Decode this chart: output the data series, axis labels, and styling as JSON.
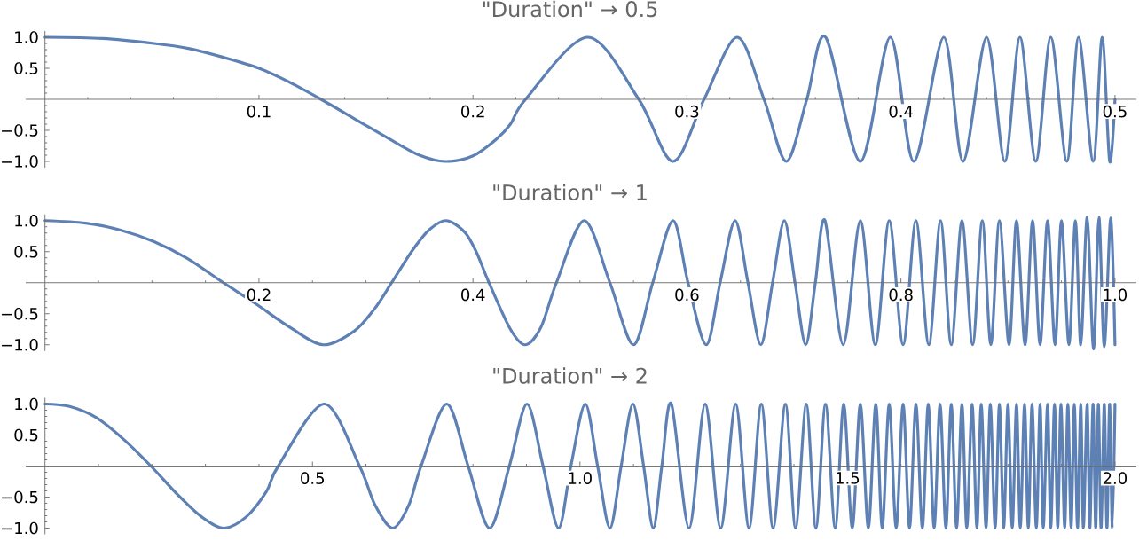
{
  "chart_data": [
    {
      "type": "line",
      "title": "\"Duration\" → 0.5",
      "color": "#5e81b5",
      "x": [
        0,
        0.027,
        0.051,
        0.067,
        0.083,
        0.1,
        0.114,
        0.129,
        0.146,
        0.162,
        0.175,
        0.187,
        0.2,
        0.211,
        0.2175,
        0.2246,
        0.2536,
        0.2775,
        0.2935,
        0.308,
        0.3235,
        0.336,
        0.3464,
        0.356,
        0.3648,
        0.381,
        0.395,
        0.406,
        0.42,
        0.429,
        0.44,
        0.4485,
        0.4556,
        0.463,
        0.47,
        0.4775,
        0.483,
        0.4898,
        0.494,
        0.4975,
        0.5
      ],
      "values": [
        1,
        0.98,
        0.9,
        0.82,
        0.68,
        0.5,
        0.28,
        0,
        -0.34,
        -0.66,
        -0.9,
        -1,
        -0.91,
        -0.64,
        -0.4,
        0,
        1,
        0,
        -1,
        0,
        1,
        0,
        -1,
        0,
        1,
        -1,
        1,
        -1,
        1,
        -1,
        1,
        -1,
        1,
        -1,
        1,
        -1,
        1,
        -1,
        1,
        -1,
        0
      ],
      "xlim": [
        -0.009,
        0.51
      ],
      "ylim": [
        -1.1,
        1.1
      ],
      "xticks": [
        {
          "value": 0.02,
          "label": null
        },
        {
          "value": 0.04,
          "label": null
        },
        {
          "value": 0.06,
          "label": null
        },
        {
          "value": 0.08,
          "label": null
        },
        0.1,
        {
          "value": 0.12,
          "label": null
        },
        {
          "value": 0.14,
          "label": null
        },
        {
          "value": 0.16,
          "label": null
        },
        {
          "value": 0.18,
          "label": null
        },
        0.2,
        {
          "value": 0.22,
          "label": null
        },
        {
          "value": 0.24,
          "label": null
        },
        {
          "value": 0.26,
          "label": null
        },
        {
          "value": 0.28,
          "label": null
        },
        0.3,
        {
          "value": 0.32,
          "label": null
        },
        {
          "value": 0.34,
          "label": null
        },
        {
          "value": 0.36,
          "label": null
        },
        {
          "value": 0.38,
          "label": null
        },
        0.4,
        {
          "value": 0.42,
          "label": null
        },
        {
          "value": 0.44,
          "label": null
        },
        {
          "value": 0.46,
          "label": null
        },
        {
          "value": 0.48,
          "label": null
        },
        0.5
      ],
      "yticks": [
        {
          "value": -1,
          "label": "−1.0"
        },
        {
          "value": -0.9,
          "label": null
        },
        {
          "value": -0.8,
          "label": null
        },
        {
          "value": -0.7,
          "label": null
        },
        {
          "value": -0.6,
          "label": null
        },
        {
          "value": -0.5,
          "label": "−0.5"
        },
        {
          "value": -0.4,
          "label": null
        },
        {
          "value": -0.3,
          "label": null
        },
        {
          "value": -0.2,
          "label": null
        },
        {
          "value": -0.1,
          "label": null
        },
        {
          "value": 0.1,
          "label": null
        },
        {
          "value": 0.2,
          "label": null
        },
        {
          "value": 0.3,
          "label": null
        },
        {
          "value": 0.4,
          "label": null
        },
        {
          "value": 0.5,
          "label": "0.5"
        },
        {
          "value": 0.6,
          "label": null
        },
        {
          "value": 0.7,
          "label": null
        },
        {
          "value": 0.8,
          "label": null
        },
        {
          "value": 0.9,
          "label": null
        },
        {
          "value": 1,
          "label": "1.0"
        }
      ]
    },
    {
      "type": "line",
      "title": "\"Duration\" → 1",
      "color": "#5e81b5",
      "x": [
        0,
        0.038,
        0.07,
        0.102,
        0.133,
        0.1667,
        0.197,
        0.229,
        0.26,
        0.289,
        0.308,
        0.324,
        0.343,
        0.359,
        0.375,
        0.392,
        0.403,
        0.415,
        0.435,
        0.449,
        0.4635,
        0.478,
        0.504,
        0.528,
        0.55,
        0.568,
        0.587,
        0.601,
        0.618,
        0.631,
        0.645,
        0.657,
        0.669,
        0.68,
        0.691,
        0.701,
        0.711,
        0.72,
        0.729,
        0.746,
        0.762,
        0.776,
        0.789,
        0.802,
        0.814,
        0.826,
        0.837,
        0.847,
        0.857,
        0.867,
        0.876,
        0.884,
        0.892,
        0.901,
        0.908,
        0.916,
        0.923,
        0.93,
        0.937,
        0.944,
        0.95,
        0.957,
        0.963,
        0.968,
        0.974,
        0.98,
        0.985,
        0.99,
        0.996,
        1.0
      ],
      "values": [
        1,
        0.96,
        0.85,
        0.66,
        0.39,
        0,
        -0.34,
        -0.72,
        -1,
        -0.78,
        -0.42,
        0,
        0.51,
        0.85,
        1,
        0.82,
        0.5,
        0,
        -0.75,
        -1,
        -0.72,
        0,
        1,
        0,
        -1,
        0,
        1,
        0,
        -1,
        0,
        1,
        0,
        -1,
        0,
        1,
        0,
        -1,
        0,
        1,
        -1,
        1,
        -1,
        1,
        -1,
        1,
        -1,
        1,
        -1,
        1,
        -1,
        1,
        -1,
        1,
        -1,
        1,
        -1,
        1,
        -1,
        1,
        -1,
        1,
        -1,
        1,
        -1,
        1.05,
        -1.07,
        1.05,
        -1.03,
        1.04,
        -1
      ],
      "xlim": [
        -0.018,
        1.02
      ],
      "ylim": [
        -1.1,
        1.1
      ],
      "xticks": [
        {
          "value": 0.05,
          "label": null
        },
        {
          "value": 0.1,
          "label": null
        },
        {
          "value": 0.15,
          "label": null
        },
        0.2,
        {
          "value": 0.25,
          "label": null
        },
        {
          "value": 0.3,
          "label": null
        },
        {
          "value": 0.35,
          "label": null
        },
        0.4,
        {
          "value": 0.45,
          "label": null
        },
        {
          "value": 0.5,
          "label": null
        },
        {
          "value": 0.55,
          "label": null
        },
        0.6,
        {
          "value": 0.65,
          "label": null
        },
        {
          "value": 0.7,
          "label": null
        },
        {
          "value": 0.75,
          "label": null
        },
        0.8,
        {
          "value": 0.85,
          "label": null
        },
        {
          "value": 0.9,
          "label": null
        },
        {
          "value": 0.95,
          "label": null
        },
        {
          "value": 1,
          "label": "1.0"
        }
      ],
      "yticks": [
        {
          "value": -1,
          "label": "−1.0"
        },
        {
          "value": -0.9,
          "label": null
        },
        {
          "value": -0.8,
          "label": null
        },
        {
          "value": -0.7,
          "label": null
        },
        {
          "value": -0.6,
          "label": null
        },
        {
          "value": -0.5,
          "label": "−0.5"
        },
        {
          "value": -0.4,
          "label": null
        },
        {
          "value": -0.3,
          "label": null
        },
        {
          "value": -0.2,
          "label": null
        },
        {
          "value": -0.1,
          "label": null
        },
        {
          "value": 0.1,
          "label": null
        },
        {
          "value": 0.2,
          "label": null
        },
        {
          "value": 0.3,
          "label": null
        },
        {
          "value": 0.4,
          "label": null
        },
        {
          "value": 0.5,
          "label": "0.5"
        },
        {
          "value": 0.6,
          "label": null
        },
        {
          "value": 0.7,
          "label": null
        },
        {
          "value": 0.8,
          "label": null
        },
        {
          "value": 0.9,
          "label": null
        },
        {
          "value": 1,
          "label": "1.0"
        }
      ]
    },
    {
      "type": "line",
      "title": "\"Duration\" → 2",
      "color": "#5e81b5",
      "x": [
        0,
        0.046,
        0.096,
        0.147,
        0.198,
        0.249,
        0.293,
        0.334,
        0.376,
        0.414,
        0.436,
        0.522,
        0.588,
        0.617,
        0.65,
        0.68,
        0.703,
        0.751,
        0.791,
        0.831,
        0.868,
        0.901,
        0.931,
        0.96,
        0.983,
        1.01,
        1.033,
        1.056,
        1.077,
        1.099,
        1.119,
        1.137,
        1.153,
        1.171,
        1.204,
        1.234,
        1.263,
        1.291,
        1.316,
        1.339,
        1.361,
        1.384,
        1.403,
        1.423,
        1.441,
        1.459,
        1.477,
        1.493,
        1.509,
        1.524,
        1.539,
        1.553,
        1.565,
        1.578,
        1.591,
        1.604,
        1.616,
        1.628,
        1.64,
        1.651,
        1.662,
        1.673,
        1.684,
        1.694,
        1.704,
        1.714,
        1.723,
        1.733,
        1.742,
        1.75,
        1.759,
        1.767,
        1.776,
        1.784,
        1.792,
        1.8,
        1.808,
        1.816,
        1.823,
        1.831,
        1.838,
        1.845,
        1.853,
        1.86,
        1.866,
        1.874,
        1.88,
        1.887,
        1.893,
        1.899,
        1.906,
        1.912,
        1.918,
        1.924,
        1.93,
        1.936,
        1.941,
        1.948,
        1.953,
        1.959,
        1.964,
        1.969,
        1.974,
        1.98,
        1.985,
        1.99,
        1.995,
        2.0
      ],
      "values": [
        1,
        0.96,
        0.78,
        0.43,
        0,
        -0.47,
        -0.82,
        -1,
        -0.82,
        -0.41,
        0,
        1,
        0,
        -0.63,
        -1,
        -0.63,
        0,
        1,
        0,
        -1,
        0,
        1,
        0,
        -1,
        0,
        1,
        0,
        -1,
        0,
        1,
        0,
        -1,
        0,
        1,
        -1,
        1,
        -1,
        1,
        -1,
        1,
        -1,
        1,
        -1,
        1,
        -1,
        1,
        -1,
        1,
        -1,
        1,
        -1,
        1,
        -1,
        1,
        -1,
        1,
        -1,
        1,
        -1,
        1,
        -1,
        1,
        -1,
        1,
        -1,
        1,
        -1,
        1,
        -1,
        1,
        -1,
        1,
        -1,
        1,
        -1,
        1,
        -1,
        1,
        -1,
        1,
        -1,
        1,
        -1,
        1,
        -1,
        1,
        -1,
        1,
        -1,
        1,
        -1,
        1,
        -1,
        1,
        -1,
        1,
        -1,
        1,
        -1,
        1,
        -1,
        1,
        -1,
        1,
        -1,
        1,
        -1,
        1
      ],
      "xlim": [
        -0.036,
        2.04
      ],
      "ylim": [
        -1.1,
        1.1
      ],
      "xticks": [
        {
          "value": 0.1,
          "label": null
        },
        {
          "value": 0.2,
          "label": null
        },
        {
          "value": 0.3,
          "label": null
        },
        {
          "value": 0.4,
          "label": null
        },
        0.5,
        {
          "value": 0.6,
          "label": null
        },
        {
          "value": 0.7,
          "label": null
        },
        {
          "value": 0.8,
          "label": null
        },
        {
          "value": 0.9,
          "label": null
        },
        {
          "value": 1,
          "label": "1.0"
        },
        {
          "value": 1.1,
          "label": null
        },
        {
          "value": 1.2,
          "label": null
        },
        {
          "value": 1.3,
          "label": null
        },
        {
          "value": 1.4,
          "label": null
        },
        1.5,
        {
          "value": 1.6,
          "label": null
        },
        {
          "value": 1.7,
          "label": null
        },
        {
          "value": 1.8,
          "label": null
        },
        {
          "value": 1.9,
          "label": null
        },
        {
          "value": 2,
          "label": "2.0"
        }
      ],
      "yticks": [
        {
          "value": -1,
          "label": "−1.0"
        },
        {
          "value": -0.9,
          "label": null
        },
        {
          "value": -0.8,
          "label": null
        },
        {
          "value": -0.7,
          "label": null
        },
        {
          "value": -0.6,
          "label": null
        },
        {
          "value": -0.5,
          "label": "−0.5"
        },
        {
          "value": -0.4,
          "label": null
        },
        {
          "value": -0.3,
          "label": null
        },
        {
          "value": -0.2,
          "label": null
        },
        {
          "value": -0.1,
          "label": null
        },
        {
          "value": 0.1,
          "label": null
        },
        {
          "value": 0.2,
          "label": null
        },
        {
          "value": 0.3,
          "label": null
        },
        {
          "value": 0.4,
          "label": null
        },
        {
          "value": 0.5,
          "label": "0.5"
        },
        {
          "value": 0.6,
          "label": null
        },
        {
          "value": 0.7,
          "label": null
        },
        {
          "value": 0.8,
          "label": null
        },
        {
          "value": 0.9,
          "label": null
        },
        {
          "value": 1,
          "label": "1.0"
        }
      ]
    }
  ]
}
